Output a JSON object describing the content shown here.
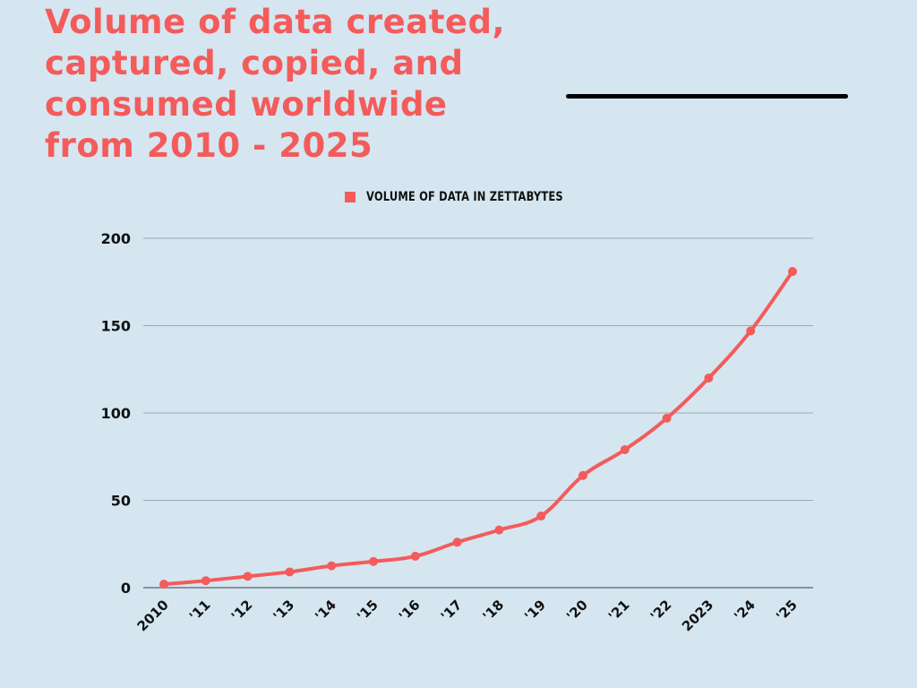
{
  "chart_data": {
    "type": "line",
    "title": "Volume of data created, captured, copied, and consumed worldwide from 2010 - 2025",
    "xlabel": "",
    "ylabel": "",
    "categories": [
      "2010",
      "'11",
      "'12",
      "'13",
      "'14",
      "'15",
      "'16",
      "'17",
      "'18",
      "'19",
      "'20",
      "'21",
      "'22",
      "2023",
      "'24",
      "'25"
    ],
    "series": [
      {
        "name": "VOLUME OF DATA IN ZETTABYTES",
        "values": [
          2,
          4,
          6.5,
          9,
          12.5,
          15,
          18,
          26,
          33,
          41,
          64.2,
          79,
          97,
          120,
          147,
          181
        ],
        "color": "#f45b5b"
      }
    ],
    "ylim": [
      0,
      200
    ],
    "yticks": [
      0,
      50,
      100,
      150,
      200
    ],
    "grid": true,
    "legend": "top-center"
  }
}
